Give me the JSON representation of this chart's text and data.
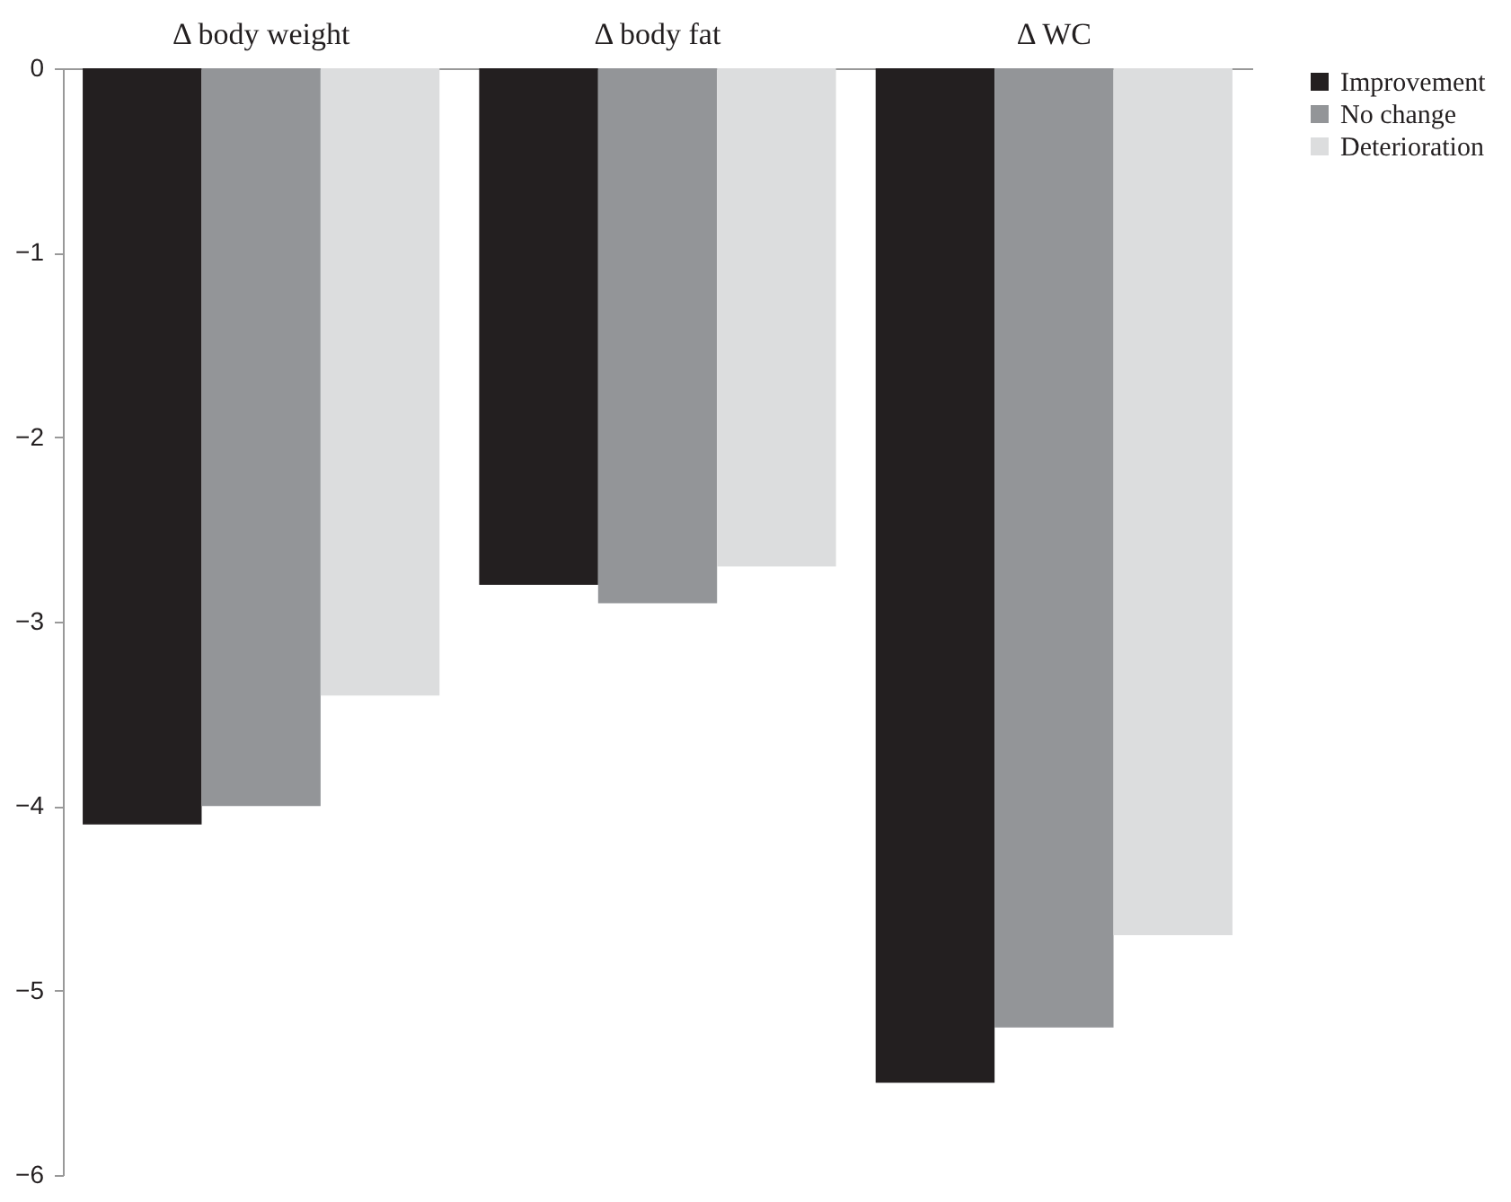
{
  "chart_data": {
    "type": "bar",
    "categories": [
      "Δ body weight",
      "Δ body fat",
      "Δ WC"
    ],
    "series": [
      {
        "name": "Improvement",
        "color": "#231f20",
        "values": [
          -4.1,
          -2.8,
          -5.5
        ]
      },
      {
        "name": "No change",
        "color": "#939598",
        "values": [
          -4.0,
          -2.9,
          -5.2
        ]
      },
      {
        "name": "Deterioration",
        "color": "#dcddde",
        "values": [
          -3.4,
          -2.7,
          -4.7
        ]
      }
    ],
    "ylim": [
      -6,
      0
    ],
    "yticks": [
      -6,
      -5,
      -4,
      -3,
      -2,
      -1,
      0
    ],
    "grid": false,
    "legend": "right"
  }
}
